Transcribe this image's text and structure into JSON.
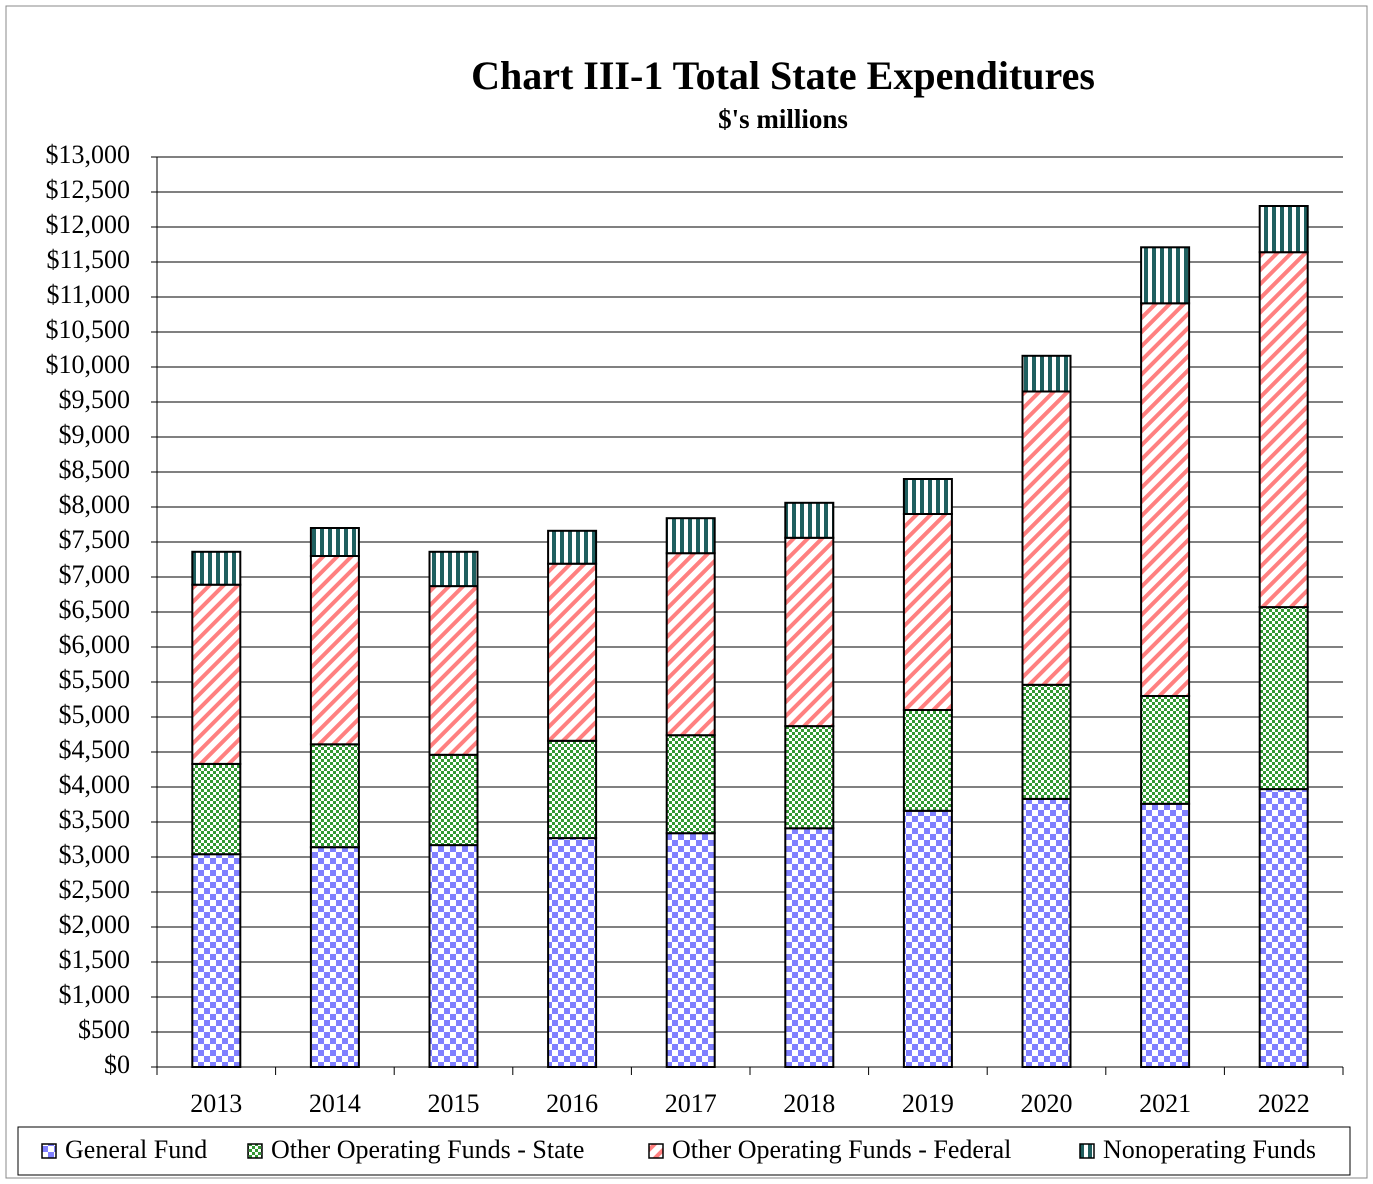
{
  "chart_data": {
    "type": "stacked_bar",
    "title": "Chart III-1  Total State Expenditures",
    "subtitle": "$'s millions",
    "categories": [
      "2013",
      "2014",
      "2015",
      "2016",
      "2017",
      "2018",
      "2019",
      "2020",
      "2021",
      "2022"
    ],
    "series": [
      {
        "name": "General Fund",
        "color": "#8080ff",
        "values": [
          3040,
          3140,
          3170,
          3270,
          3340,
          3410,
          3660,
          3830,
          3760,
          3970
        ]
      },
      {
        "name": "Other Operating Funds - State",
        "color": "#339933",
        "values": [
          1290,
          1470,
          1290,
          1390,
          1400,
          1460,
          1440,
          1630,
          1540,
          2600
        ]
      },
      {
        "name": "Other Operating Funds - Federal",
        "color": "#ff8080",
        "values": [
          2560,
          2690,
          2410,
          2530,
          2600,
          2690,
          2800,
          4190,
          5610,
          5070
        ]
      },
      {
        "name": "Nonoperating Funds",
        "color": "#1f5f5f",
        "values": [
          470,
          400,
          490,
          470,
          500,
          500,
          500,
          510,
          800,
          660
        ]
      }
    ],
    "ylim": [
      0,
      13000
    ],
    "yticks": [
      {
        "value": 0,
        "label": "$0"
      },
      {
        "value": 500,
        "label": "$500"
      },
      {
        "value": 1000,
        "label": "$1,000"
      },
      {
        "value": 1500,
        "label": "$1,500"
      },
      {
        "value": 2000,
        "label": "$2,000"
      },
      {
        "value": 2500,
        "label": "$2,500"
      },
      {
        "value": 3000,
        "label": "$3,000"
      },
      {
        "value": 3500,
        "label": "$3,500"
      },
      {
        "value": 4000,
        "label": "$4,000"
      },
      {
        "value": 4500,
        "label": "$4,500"
      },
      {
        "value": 5000,
        "label": "$5,000"
      },
      {
        "value": 5500,
        "label": "$5,500"
      },
      {
        "value": 6000,
        "label": "$6,000"
      },
      {
        "value": 6500,
        "label": "$6,500"
      },
      {
        "value": 7000,
        "label": "$7,000"
      },
      {
        "value": 7500,
        "label": "$7,500"
      },
      {
        "value": 8000,
        "label": "$8,000"
      },
      {
        "value": 8500,
        "label": "$8,500"
      },
      {
        "value": 9000,
        "label": "$9,000"
      },
      {
        "value": 9500,
        "label": "$9,500"
      },
      {
        "value": 10000,
        "label": "$10,000"
      },
      {
        "value": 10500,
        "label": "$10,500"
      },
      {
        "value": 11000,
        "label": "$11,000"
      },
      {
        "value": 11500,
        "label": "$11,500"
      },
      {
        "value": 12000,
        "label": "$12,000"
      },
      {
        "value": 12500,
        "label": "$12,500"
      },
      {
        "value": 13000,
        "label": "$13,000"
      }
    ],
    "grid": true,
    "legend": "bottom"
  }
}
